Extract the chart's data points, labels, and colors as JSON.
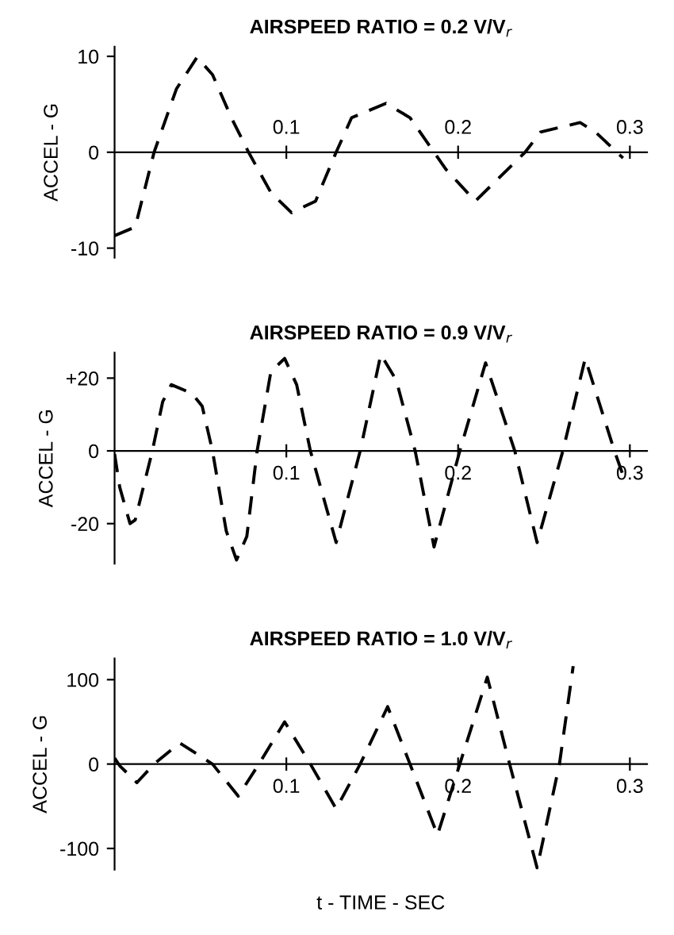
{
  "chart_data": [
    {
      "type": "line",
      "title": "AIRSPEED RATIO = 0.2 V/V$_{r}$",
      "ylabel": "ACCEL - G",
      "line_style": "dashed",
      "marker": "none",
      "grid": false,
      "legend": false,
      "xlim": [
        0,
        0.31
      ],
      "xticks": [
        0.1,
        0.2,
        0.3
      ],
      "ylim": [
        -11,
        11
      ],
      "yticks": [
        -10,
        0,
        10
      ],
      "series": [
        {
          "color": "#000000",
          "x": [
            0,
            0.012,
            0.023,
            0.036,
            0.048,
            0.057,
            0.068,
            0.078,
            0.091,
            0.103,
            0.117,
            0.129,
            0.138,
            0.158,
            0.172,
            0.193,
            0.21,
            0.239,
            0.248,
            0.271,
            0.28,
            0.296
          ],
          "values": [
            -8.7,
            -7.8,
            0,
            6.6,
            9.9,
            8.1,
            3.6,
            0,
            -4.2,
            -6.3,
            -5.1,
            0,
            3.6,
            5.1,
            3.6,
            -1.8,
            -5.1,
            0,
            2.1,
            3.1,
            2.1,
            -0.6
          ]
        }
      ]
    },
    {
      "type": "line",
      "title": "AIRSPEED RATIO = 0.9 V/V$_{r}$",
      "ylabel": "ACCEL - G",
      "line_style": "dashed",
      "marker": "none",
      "grid": false,
      "legend": false,
      "xlim": [
        0,
        0.31
      ],
      "xticks": [
        0.1,
        0.2,
        0.3
      ],
      "ylim": [
        -31,
        27
      ],
      "yticks": [
        -20,
        0,
        {
          "value": 20,
          "label": "+20"
        }
      ],
      "series": [
        {
          "color": "#000000",
          "x": [
            0,
            0.003,
            0.009,
            0.012,
            0.022,
            0.028,
            0.033,
            0.045,
            0.051,
            0.057,
            0.065,
            0.071,
            0.077,
            0.083,
            0.091,
            0.099,
            0.106,
            0.114,
            0.129,
            0.143,
            0.155,
            0.164,
            0.175,
            0.186,
            0.201,
            0.216,
            0.233,
            0.246,
            0.261,
            0.274,
            0.291,
            0.297
          ],
          "values": [
            -0.8,
            -10,
            -20,
            -19,
            0,
            13.5,
            18.2,
            15.8,
            12.3,
            0,
            -22,
            -30,
            -23.5,
            0,
            21.8,
            25.4,
            18.2,
            0,
            -25.2,
            0,
            26.5,
            19.4,
            0,
            -26.4,
            0,
            24.2,
            0,
            -25.2,
            0,
            25.4,
            0,
            -8
          ]
        }
      ]
    },
    {
      "type": "line",
      "title": "AIRSPEED RATIO = 1.0 V/V$_{r}$",
      "xlabel": "t - TIME - SEC",
      "ylabel": "ACCEL - G",
      "line_style": "dashed",
      "marker": "none",
      "grid": false,
      "legend": false,
      "xlim": [
        0,
        0.31
      ],
      "xticks": [
        0.1,
        0.2,
        0.3
      ],
      "ylim": [
        -125,
        125
      ],
      "yticks": [
        -100,
        0,
        100
      ],
      "series": [
        {
          "color": "#000000",
          "x": [
            0,
            0.003,
            0.013,
            0.023,
            0.038,
            0.057,
            0.072,
            0.084,
            0.099,
            0.114,
            0.129,
            0.143,
            0.159,
            0.172,
            0.188,
            0.201,
            0.217,
            0.23,
            0.246,
            0.259,
            0.267
          ],
          "values": [
            7,
            -2,
            -22,
            0,
            25,
            0,
            -38,
            0,
            50,
            0,
            -53,
            0,
            68,
            0,
            -84,
            0,
            103,
            0,
            -123,
            0,
            116
          ]
        }
      ]
    }
  ]
}
